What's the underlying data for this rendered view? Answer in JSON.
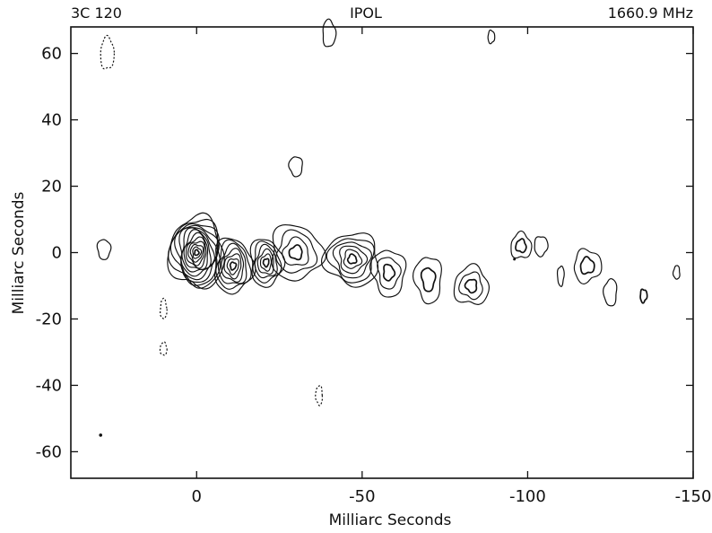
{
  "chart_data": {
    "type": "contour",
    "title": "IPOL",
    "source_label": "3C 120",
    "frequency_label": "1660.9 MHz",
    "xlabel": "Milliarc Seconds",
    "ylabel": "Milliarc Seconds",
    "xlim": [
      38,
      -150
    ],
    "ylim": [
      -68,
      68
    ],
    "xticks": [
      0,
      -50,
      -100,
      -150
    ],
    "xtick_labels": [
      "0",
      "-50",
      "-100",
      "-150"
    ],
    "yticks": [
      60,
      40,
      20,
      0,
      -20,
      -40,
      -60
    ],
    "ytick_labels": [
      "60",
      "40",
      "20",
      "0",
      "-20",
      "-40",
      "-60"
    ],
    "grid": false,
    "legend": "none",
    "colors": {
      "contour": "#111111",
      "axis": "#111111",
      "background": "#ffffff"
    },
    "features": [
      {
        "name": "core",
        "x": 0,
        "y": 0,
        "levels": 13,
        "spread_x": 8,
        "spread_y": 11
      },
      {
        "name": "jet-knot-1",
        "x": -11,
        "y": -4,
        "levels": 7,
        "spread_x": 6,
        "spread_y": 8
      },
      {
        "name": "jet-knot-2",
        "x": -21,
        "y": -3,
        "levels": 6,
        "spread_x": 5,
        "spread_y": 7
      },
      {
        "name": "jet-knot-3",
        "x": -30,
        "y": 0,
        "levels": 4,
        "spread_x": 8,
        "spread_y": 8
      },
      {
        "name": "jet-knot-4",
        "x": -47,
        "y": -2,
        "levels": 6,
        "spread_x": 8,
        "spread_y": 8
      },
      {
        "name": "jet-knot-5",
        "x": -58,
        "y": -6,
        "levels": 3,
        "spread_x": 5,
        "spread_y": 7
      },
      {
        "name": "jet-knot-6",
        "x": -70,
        "y": -8,
        "levels": 2,
        "spread_x": 4,
        "spread_y": 7
      },
      {
        "name": "jet-knot-7",
        "x": -83,
        "y": -10,
        "levels": 3,
        "spread_x": 5,
        "spread_y": 6
      },
      {
        "name": "jet-knot-8",
        "x": -98,
        "y": 2,
        "levels": 2,
        "spread_x": 3,
        "spread_y": 4
      },
      {
        "name": "jet-knot-9",
        "x": -118,
        "y": -4,
        "levels": 2,
        "spread_x": 4,
        "spread_y": 5
      },
      {
        "name": "jet-knot-10",
        "x": -135,
        "y": -13,
        "levels": 1,
        "spread_x": 1,
        "spread_y": 2
      }
    ]
  }
}
